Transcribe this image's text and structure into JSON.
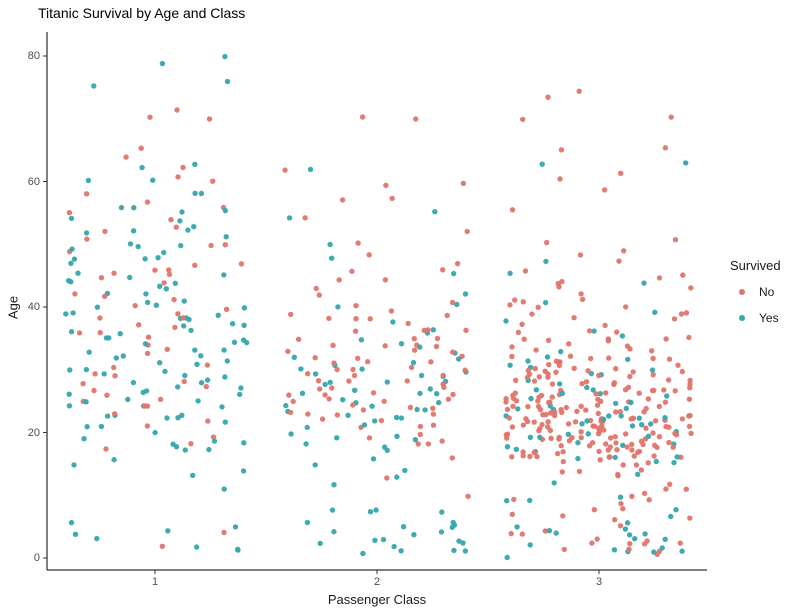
{
  "chart_data": {
    "type": "scatter",
    "subtype": "jitter",
    "title": "Titanic Survival by Age and Class",
    "xlabel": "Passenger Class",
    "ylabel": "Age",
    "x_categories": [
      "1",
      "2",
      "3"
    ],
    "y_ticks": [
      0,
      20,
      40,
      60,
      80
    ],
    "ylim": [
      0,
      80
    ],
    "grid": "off",
    "background": "#ffffff",
    "axis_color": "#000000",
    "tick_label_color": "#4d4d4d",
    "point_radius": 2.7,
    "colors": {
      "No": "#E0756C",
      "Yes": "#35A7AD"
    },
    "legend": {
      "title": "Survived",
      "position": "right",
      "entries": [
        {
          "label": "No",
          "color_key": "No"
        },
        {
          "label": "Yes",
          "color_key": "Yes"
        }
      ]
    },
    "series": [
      {
        "class": "1",
        "survived": "No",
        "n": 64,
        "ages_rle": [
          [
            71,
            1
          ],
          [
            70,
            2
          ],
          [
            65,
            1
          ],
          [
            64,
            1
          ],
          [
            62,
            1
          ],
          [
            61,
            1
          ],
          [
            60,
            1
          ],
          [
            58,
            1
          ],
          [
            57,
            1
          ],
          [
            56,
            1
          ],
          [
            55,
            1
          ],
          [
            54,
            1
          ],
          [
            53,
            1
          ],
          [
            52,
            1
          ],
          [
            51,
            1
          ],
          [
            50,
            2
          ],
          [
            49,
            1
          ],
          [
            47,
            2
          ],
          [
            46,
            2
          ],
          [
            45,
            3
          ],
          [
            44,
            1
          ],
          [
            42,
            2
          ],
          [
            41,
            1
          ],
          [
            40,
            2
          ],
          [
            39,
            1
          ],
          [
            38,
            2
          ],
          [
            37,
            2
          ],
          [
            36,
            2
          ],
          [
            35,
            1
          ],
          [
            34,
            1
          ],
          [
            33,
            2
          ],
          [
            31,
            1
          ],
          [
            30,
            1
          ],
          [
            29,
            2
          ],
          [
            28,
            2
          ],
          [
            27,
            2
          ],
          [
            26,
            1
          ],
          [
            25,
            2
          ],
          [
            24,
            2
          ],
          [
            23,
            1
          ],
          [
            22,
            1
          ],
          [
            21,
            1
          ],
          [
            19,
            1
          ],
          [
            18,
            1
          ],
          [
            17,
            1
          ],
          [
            4,
            1
          ],
          [
            2,
            1
          ]
        ]
      },
      {
        "class": "1",
        "survived": "Yes",
        "n": 122,
        "ages_rle": [
          [
            80,
            1
          ],
          [
            79,
            1
          ],
          [
            76,
            1
          ],
          [
            75.5,
            1
          ],
          [
            63,
            1
          ],
          [
            62,
            1
          ],
          [
            60,
            2
          ],
          [
            58,
            2
          ],
          [
            56,
            2
          ],
          [
            55,
            2
          ],
          [
            54,
            2
          ],
          [
            53,
            1
          ],
          [
            52,
            3
          ],
          [
            51,
            1
          ],
          [
            50,
            3
          ],
          [
            49,
            2
          ],
          [
            48,
            3
          ],
          [
            47,
            1
          ],
          [
            45,
            3
          ],
          [
            44,
            3
          ],
          [
            43,
            2
          ],
          [
            42,
            2
          ],
          [
            41,
            2
          ],
          [
            40,
            3
          ],
          [
            39,
            3
          ],
          [
            38,
            3
          ],
          [
            37,
            3
          ],
          [
            36,
            3
          ],
          [
            35,
            3
          ],
          [
            34,
            3
          ],
          [
            33,
            3
          ],
          [
            32,
            3
          ],
          [
            31,
            3
          ],
          [
            30,
            3
          ],
          [
            29,
            3
          ],
          [
            28,
            3
          ],
          [
            27,
            3
          ],
          [
            26,
            3
          ],
          [
            25,
            3
          ],
          [
            24,
            3
          ],
          [
            23,
            3
          ],
          [
            22,
            3
          ],
          [
            21,
            2
          ],
          [
            20,
            1
          ],
          [
            19,
            2
          ],
          [
            18,
            3
          ],
          [
            17,
            2
          ],
          [
            16,
            1
          ],
          [
            15,
            1
          ],
          [
            14,
            1
          ],
          [
            13,
            1
          ],
          [
            11,
            1
          ],
          [
            6,
            1
          ],
          [
            5,
            1
          ],
          [
            4,
            2
          ],
          [
            3,
            1
          ],
          [
            2,
            1
          ],
          [
            1,
            1
          ],
          [
            0.92,
            1
          ]
        ]
      },
      {
        "class": "2",
        "survived": "No",
        "n": 90,
        "ages_rle": [
          [
            70,
            2
          ],
          [
            62,
            1
          ],
          [
            60,
            1
          ],
          [
            59,
            1
          ],
          [
            57,
            2
          ],
          [
            54,
            1
          ],
          [
            52,
            1
          ],
          [
            50,
            1
          ],
          [
            48,
            1
          ],
          [
            47,
            1
          ],
          [
            46,
            2
          ],
          [
            44,
            2
          ],
          [
            43,
            1
          ],
          [
            42,
            1
          ],
          [
            41,
            1
          ],
          [
            40,
            1
          ],
          [
            39,
            3
          ],
          [
            38,
            3
          ],
          [
            37,
            1
          ],
          [
            36,
            4
          ],
          [
            35,
            3
          ],
          [
            34,
            4
          ],
          [
            33,
            3
          ],
          [
            32,
            3
          ],
          [
            31,
            3
          ],
          [
            30,
            4
          ],
          [
            29,
            3
          ],
          [
            28,
            4
          ],
          [
            27,
            3
          ],
          [
            26,
            4
          ],
          [
            25,
            4
          ],
          [
            24,
            4
          ],
          [
            23,
            4
          ],
          [
            22,
            2
          ],
          [
            21,
            3
          ],
          [
            20,
            1
          ],
          [
            19,
            2
          ],
          [
            18,
            2
          ],
          [
            16,
            1
          ],
          [
            13,
            1
          ],
          [
            10,
            1
          ]
        ]
      },
      {
        "class": "2",
        "survived": "Yes",
        "n": 83,
        "ages_rle": [
          [
            62,
            1
          ],
          [
            55,
            1
          ],
          [
            54,
            1
          ],
          [
            50,
            1
          ],
          [
            48,
            1
          ],
          [
            45,
            1
          ],
          [
            42,
            1
          ],
          [
            40,
            2
          ],
          [
            38,
            1
          ],
          [
            36,
            2
          ],
          [
            35,
            1
          ],
          [
            34,
            2
          ],
          [
            33,
            1
          ],
          [
            32,
            2
          ],
          [
            31,
            2
          ],
          [
            30,
            3
          ],
          [
            29,
            3
          ],
          [
            28,
            4
          ],
          [
            27,
            2
          ],
          [
            26,
            3
          ],
          [
            25,
            3
          ],
          [
            24,
            4
          ],
          [
            23,
            2
          ],
          [
            22,
            3
          ],
          [
            21,
            2
          ],
          [
            20,
            1
          ],
          [
            19,
            3
          ],
          [
            18,
            2
          ],
          [
            17,
            1
          ],
          [
            16,
            1
          ],
          [
            15,
            1
          ],
          [
            14,
            1
          ],
          [
            13,
            1
          ],
          [
            12,
            1
          ],
          [
            8,
            2
          ],
          [
            7,
            2
          ],
          [
            6,
            2
          ],
          [
            5,
            3
          ],
          [
            4,
            3
          ],
          [
            3,
            3
          ],
          [
            2,
            3
          ],
          [
            1,
            2
          ],
          [
            0.83,
            1
          ],
          [
            0.67,
            1
          ]
        ]
      },
      {
        "class": "3",
        "survived": "No",
        "n": 270,
        "ages_rle": [
          [
            74,
            1
          ],
          [
            73.5,
            1
          ],
          [
            70.5,
            1
          ],
          [
            70,
            1
          ],
          [
            65,
            2
          ],
          [
            61,
            1
          ],
          [
            60.5,
            1
          ],
          [
            59,
            1
          ],
          [
            55.5,
            1
          ],
          [
            51,
            1
          ],
          [
            50.5,
            1
          ],
          [
            49,
            1
          ],
          [
            48,
            1
          ],
          [
            47,
            1
          ],
          [
            45.5,
            1
          ],
          [
            45,
            2
          ],
          [
            44,
            2
          ],
          [
            43,
            2
          ],
          [
            42,
            1
          ],
          [
            41,
            2
          ],
          [
            40.5,
            1
          ],
          [
            40,
            3
          ],
          [
            39,
            2
          ],
          [
            38.5,
            1
          ],
          [
            38,
            2
          ],
          [
            37,
            2
          ],
          [
            36,
            3
          ],
          [
            35,
            5
          ],
          [
            34.5,
            1
          ],
          [
            34,
            3
          ],
          [
            33,
            3
          ],
          [
            32,
            6
          ],
          [
            31,
            5
          ],
          [
            30.5,
            1
          ],
          [
            30,
            9
          ],
          [
            29,
            8
          ],
          [
            28.5,
            1
          ],
          [
            28,
            9
          ],
          [
            27,
            8
          ],
          [
            26,
            9
          ],
          [
            25.5,
            1
          ],
          [
            25,
            11
          ],
          [
            24.5,
            1
          ],
          [
            24,
            11
          ],
          [
            23.5,
            1
          ],
          [
            23,
            12
          ],
          [
            22.5,
            1
          ],
          [
            22,
            15
          ],
          [
            21,
            13
          ],
          [
            20.5,
            1
          ],
          [
            20,
            13
          ],
          [
            19,
            13
          ],
          [
            18,
            13
          ],
          [
            17,
            10
          ],
          [
            16,
            10
          ],
          [
            15,
            3
          ],
          [
            14.5,
            1
          ],
          [
            14,
            3
          ],
          [
            13,
            2
          ],
          [
            12,
            1
          ],
          [
            11,
            2
          ],
          [
            10,
            2
          ],
          [
            9,
            3
          ],
          [
            8,
            2
          ],
          [
            7,
            2
          ],
          [
            6,
            2
          ],
          [
            5,
            1
          ],
          [
            4,
            3
          ],
          [
            3,
            2
          ],
          [
            2,
            4
          ],
          [
            1,
            3
          ],
          [
            0.75,
            1
          ]
        ]
      },
      {
        "class": "3",
        "survived": "Yes",
        "n": 85,
        "ages_rle": [
          [
            63,
            2
          ],
          [
            47,
            1
          ],
          [
            45,
            1
          ],
          [
            44,
            1
          ],
          [
            41,
            1
          ],
          [
            39,
            1
          ],
          [
            38,
            1
          ],
          [
            36,
            1
          ],
          [
            35,
            1
          ],
          [
            33,
            1
          ],
          [
            32,
            2
          ],
          [
            31,
            2
          ],
          [
            30,
            2
          ],
          [
            29,
            2
          ],
          [
            28,
            2
          ],
          [
            27,
            3
          ],
          [
            26,
            3
          ],
          [
            25,
            3
          ],
          [
            24,
            4
          ],
          [
            23,
            3
          ],
          [
            22,
            4
          ],
          [
            21,
            4
          ],
          [
            20,
            3
          ],
          [
            19,
            3
          ],
          [
            18,
            4
          ],
          [
            17,
            2
          ],
          [
            16,
            3
          ],
          [
            15,
            2
          ],
          [
            13,
            1
          ],
          [
            12,
            1
          ],
          [
            10,
            1
          ],
          [
            9,
            2
          ],
          [
            8,
            1
          ],
          [
            7,
            1
          ],
          [
            6,
            1
          ],
          [
            5,
            2
          ],
          [
            4,
            4
          ],
          [
            3,
            2
          ],
          [
            2,
            2
          ],
          [
            1,
            3
          ],
          [
            0.75,
            1
          ],
          [
            0.42,
            1
          ]
        ]
      }
    ]
  }
}
